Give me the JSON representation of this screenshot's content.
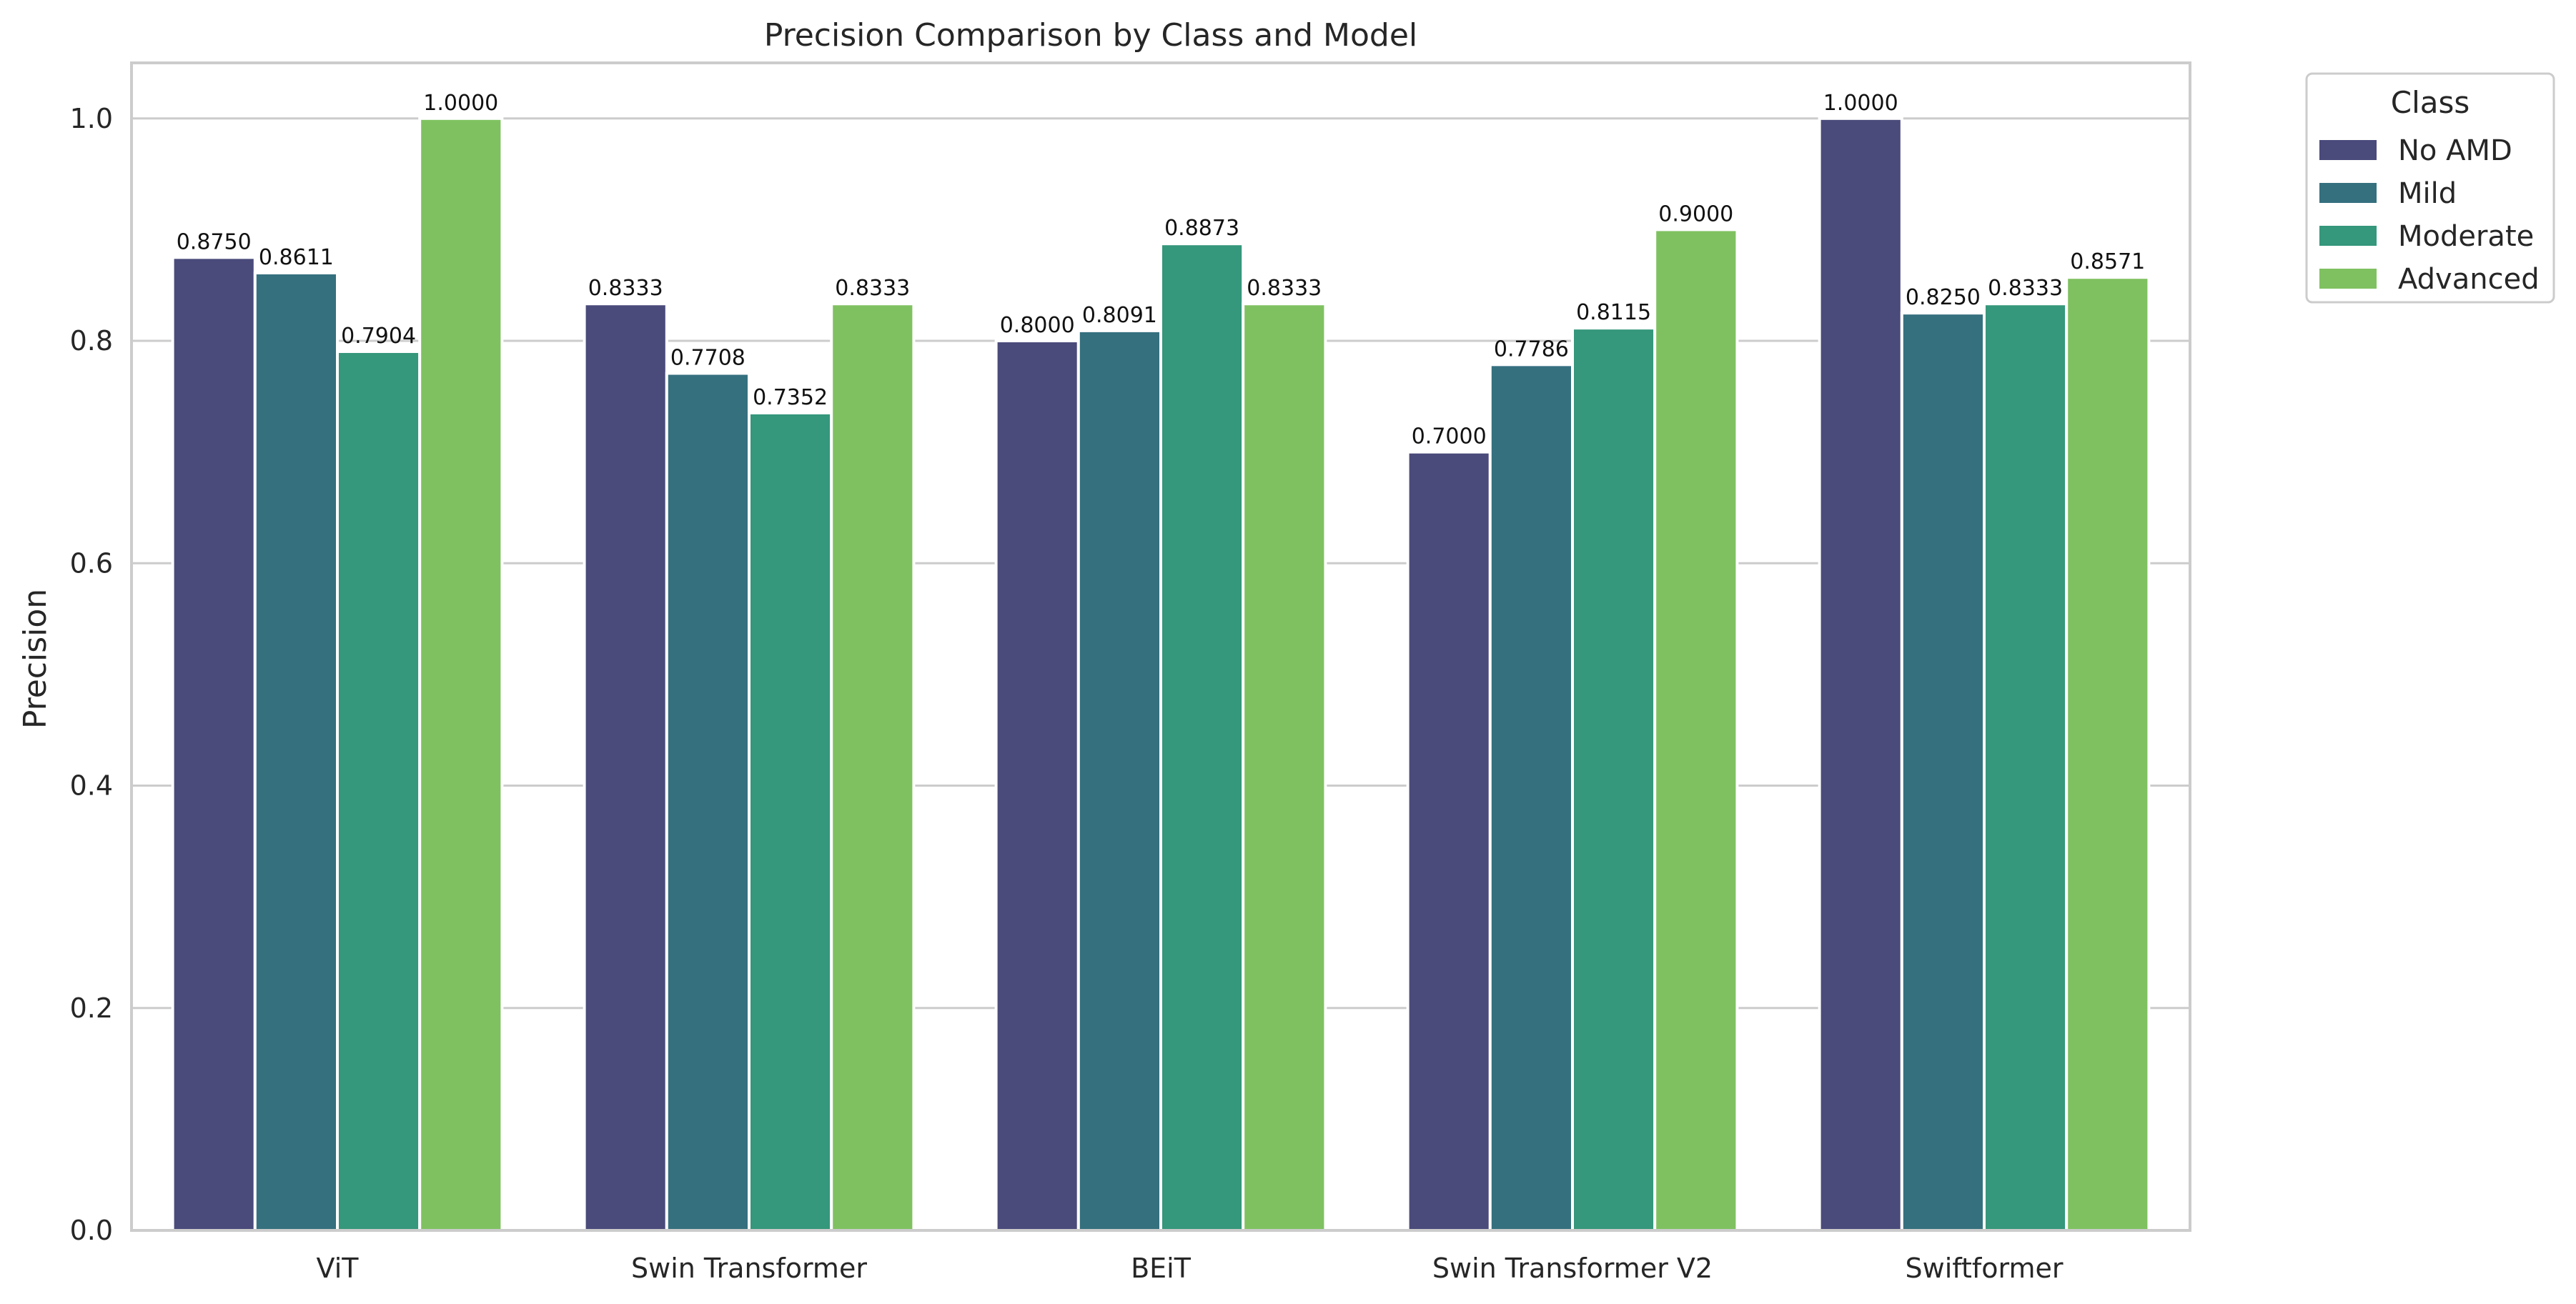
{
  "chart_data": {
    "type": "bar",
    "title": "Precision Comparison by Class and Model",
    "xlabel": "",
    "ylabel": "Precision",
    "ylim": [
      0,
      1.05
    ],
    "yticks": [
      0.0,
      0.2,
      0.4,
      0.6,
      0.8,
      1.0
    ],
    "ytick_labels": [
      "0.0",
      "0.2",
      "0.4",
      "0.6",
      "0.8",
      "1.0"
    ],
    "grid": "horizontal",
    "categories": [
      "ViT",
      "Swin Transformer",
      "BEiT",
      "Swin Transformer V2",
      "Swiftformer"
    ],
    "legend": {
      "title": "Class",
      "placement": "outside-top-right"
    },
    "series": [
      {
        "name": "No AMD",
        "color": "#4a4a7b",
        "values": [
          0.875,
          0.8333,
          0.8,
          0.7,
          1.0
        ],
        "labels": [
          "0.8750",
          "0.8333",
          "0.8000",
          "0.7000",
          "1.0000"
        ]
      },
      {
        "name": "Mild",
        "color": "#35707f",
        "values": [
          0.8611,
          0.7708,
          0.8091,
          0.7786,
          0.825
        ],
        "labels": [
          "0.8611",
          "0.7708",
          "0.8091",
          "0.7786",
          "0.8250"
        ]
      },
      {
        "name": "Moderate",
        "color": "#35977b",
        "values": [
          0.7904,
          0.7352,
          0.8873,
          0.8115,
          0.8333
        ],
        "labels": [
          "0.7904",
          "0.7352",
          "0.8873",
          "0.8115",
          "0.8333"
        ]
      },
      {
        "name": "Advanced",
        "color": "#7fc160",
        "values": [
          1.0,
          0.8333,
          0.8333,
          0.9,
          0.8571
        ],
        "labels": [
          "1.0000",
          "0.8333",
          "0.8333",
          "0.9000",
          "0.8571"
        ]
      }
    ]
  }
}
